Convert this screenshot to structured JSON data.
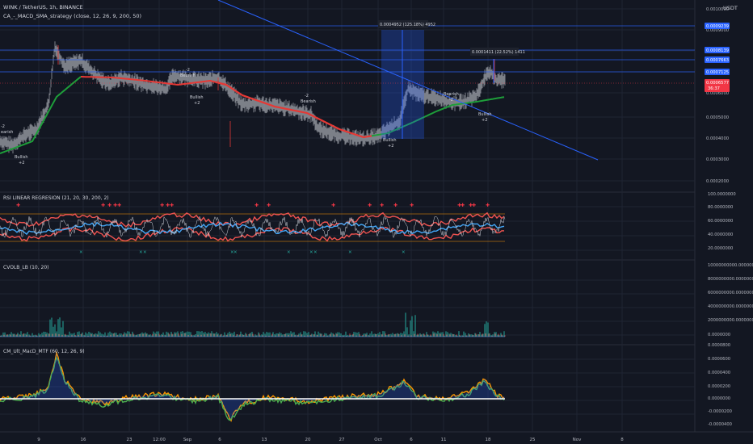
{
  "header": {
    "symbol": "WINK / TetherUS, 1h, BINANCE",
    "strategy": "CA_-_MACD_SMA_strategy (close, 12, 26, 9, 200, 50)",
    "currency": "USDT"
  },
  "panes": {
    "rsi_title": "RSI LINEAR REGRESION (21, 20, 30, 200, 2)",
    "cvol_title": "CVOLB_LB (10, 20)",
    "macd_title": "CM_Ult_MacD_MTF (60, 12, 26, 9)"
  },
  "price_axis": {
    "labels": [
      "0.0010000",
      "0.0009000",
      "0.0008000",
      "0.0007000",
      "0.0006000",
      "0.0005000",
      "0.0004000",
      "0.0003000",
      "0.0002000"
    ],
    "line_labels": [
      "0.0009239",
      "0.0008139",
      "0.0007663",
      "0.0007125"
    ],
    "last_price": "0.0006577",
    "countdown": "36:37"
  },
  "rsi_axis": {
    "labels": [
      "100.0000000",
      "80.0000000",
      "60.0000000",
      "40.0000000",
      "20.0000000"
    ]
  },
  "cvol_axis": {
    "labels": [
      "10000000000.0000000",
      "8000000000.0000000",
      "6000000000.0000000",
      "4000000000.0000000",
      "2000000000.0000000",
      "0.0000000"
    ]
  },
  "macd_axis": {
    "labels": [
      "0.0000800",
      "0.0000600",
      "0.0000400",
      "0.0000200",
      "0.0000000",
      "-0.0000200",
      "-0.0000400"
    ]
  },
  "time_axis": {
    "labels": [
      "9",
      "16",
      "23",
      "12:00",
      "Sep",
      "6",
      "13",
      "20",
      "27",
      "Oct",
      "6",
      "11",
      "18",
      "25",
      "Nov",
      "8"
    ]
  },
  "measurements": {
    "box1": "0.0004952 (125.18%) 4952",
    "box2": "0.0001411 (22.52%) 1411"
  },
  "annotations": [
    {
      "lines": [
        "-2",
        "earish"
      ]
    },
    {
      "lines": [
        "Bullish",
        "+2"
      ]
    },
    {
      "lines": [
        "-2",
        "Bearish"
      ]
    },
    {
      "lines": [
        "Bullish",
        "+2"
      ]
    },
    {
      "lines": [
        "-2",
        "Bearish"
      ]
    },
    {
      "lines": [
        "Bullish",
        "+2"
      ]
    },
    {
      "lines": [
        "Bearish",
        "-2"
      ]
    },
    {
      "lines": [
        "Bullish",
        "+2"
      ]
    }
  ],
  "colors": {
    "background": "#131722",
    "grid": "#1f2433",
    "candles": "#c6c8cf",
    "ma_red": "#e53935",
    "ma_green": "#1e9e3a",
    "blue_line": "#2962ff",
    "rsi_blue": "#42a5f5",
    "rsi_red": "#ef5350",
    "rsi_orange": "#ff9800",
    "macd_white": "#ffffff",
    "last_price_bg": "#f23645"
  }
}
